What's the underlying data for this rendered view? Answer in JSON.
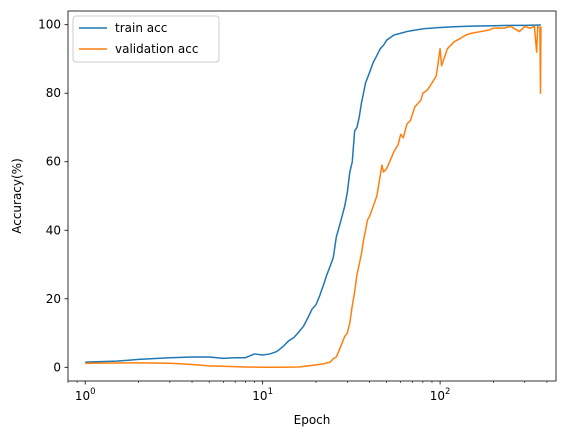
{
  "chart_data": {
    "type": "line",
    "xscale": "log",
    "xlabel": "Epoch",
    "ylabel": "Accuracy(%)",
    "xlim": [
      0.8,
      450
    ],
    "ylim": [
      -4,
      104
    ],
    "x_ticks": [
      {
        "value": 1,
        "base": "10",
        "exp": "0"
      },
      {
        "value": 10,
        "base": "10",
        "exp": "1"
      },
      {
        "value": 100,
        "base": "10",
        "exp": "2"
      }
    ],
    "y_ticks": [
      0,
      20,
      40,
      60,
      80,
      100
    ],
    "grid": false,
    "legend_position": "top-left",
    "series": [
      {
        "name": "train acc",
        "color": "#1f77b4",
        "points": [
          [
            1,
            1.5
          ],
          [
            1.5,
            1.8
          ],
          [
            2,
            2.3
          ],
          [
            3,
            2.8
          ],
          [
            4,
            3.0
          ],
          [
            5,
            3.0
          ],
          [
            6,
            2.6
          ],
          [
            7,
            2.8
          ],
          [
            8,
            2.8
          ],
          [
            9,
            3.9
          ],
          [
            10,
            3.6
          ],
          [
            11,
            3.9
          ],
          [
            12,
            4.6
          ],
          [
            13,
            6.0
          ],
          [
            14,
            7.7
          ],
          [
            15,
            8.7
          ],
          [
            16,
            10.3
          ],
          [
            17,
            12.0
          ],
          [
            18,
            14.5
          ],
          [
            19,
            17.0
          ],
          [
            20,
            18.3
          ],
          [
            21,
            21.0
          ],
          [
            22,
            24.0
          ],
          [
            23,
            27.0
          ],
          [
            24,
            29.5
          ],
          [
            25,
            32.0
          ],
          [
            26,
            38.0
          ],
          [
            27,
            41.0
          ],
          [
            28,
            44.0
          ],
          [
            29,
            47.0
          ],
          [
            30,
            51.0
          ],
          [
            31,
            57.0
          ],
          [
            32,
            60.0
          ],
          [
            33,
            69.0
          ],
          [
            34,
            70.0
          ],
          [
            35,
            73.0
          ],
          [
            36,
            77.0
          ],
          [
            37,
            80.0
          ],
          [
            38,
            83.0
          ],
          [
            40,
            86.0
          ],
          [
            42,
            89.0
          ],
          [
            44,
            91.0
          ],
          [
            46,
            93.0
          ],
          [
            48,
            94.0
          ],
          [
            50,
            95.5
          ],
          [
            55,
            97.0
          ],
          [
            60,
            97.5
          ],
          [
            65,
            98.0
          ],
          [
            70,
            98.3
          ],
          [
            80,
            98.8
          ],
          [
            90,
            99.0
          ],
          [
            100,
            99.2
          ],
          [
            120,
            99.4
          ],
          [
            150,
            99.6
          ],
          [
            200,
            99.7
          ],
          [
            250,
            99.8
          ],
          [
            300,
            99.8
          ],
          [
            370,
            99.9
          ]
        ]
      },
      {
        "name": "validation acc",
        "color": "#ff7f0e",
        "points": [
          [
            1,
            1.2
          ],
          [
            2,
            1.3
          ],
          [
            3,
            1.2
          ],
          [
            4,
            0.8
          ],
          [
            5,
            0.4
          ],
          [
            7,
            0.2
          ],
          [
            8,
            0.1
          ],
          [
            10,
            0.0
          ],
          [
            12,
            0.0
          ],
          [
            16,
            0.1
          ],
          [
            20,
            0.7
          ],
          [
            22,
            1.0
          ],
          [
            24,
            1.5
          ],
          [
            25,
            2.5
          ],
          [
            26,
            3.0
          ],
          [
            27,
            5.0
          ],
          [
            28,
            7.0
          ],
          [
            29,
            9.0
          ],
          [
            30,
            10.0
          ],
          [
            31,
            13.0
          ],
          [
            32,
            18.0
          ],
          [
            33,
            22.0
          ],
          [
            34,
            27.0
          ],
          [
            35,
            30.0
          ],
          [
            36,
            33.0
          ],
          [
            37,
            37.0
          ],
          [
            38,
            40.0
          ],
          [
            39,
            43.0
          ],
          [
            40,
            44.0
          ],
          [
            42,
            47.0
          ],
          [
            44,
            50.0
          ],
          [
            45,
            53.0
          ],
          [
            46,
            56.0
          ],
          [
            47,
            59.0
          ],
          [
            48,
            57.0
          ],
          [
            50,
            58.0
          ],
          [
            52,
            60.0
          ],
          [
            55,
            63.0
          ],
          [
            58,
            65.0
          ],
          [
            60,
            68.0
          ],
          [
            62,
            67.0
          ],
          [
            65,
            71.0
          ],
          [
            68,
            72.0
          ],
          [
            70,
            74.0
          ],
          [
            72,
            76.0
          ],
          [
            75,
            77.0
          ],
          [
            78,
            78.0
          ],
          [
            80,
            80.0
          ],
          [
            85,
            81.0
          ],
          [
            90,
            83.0
          ],
          [
            95,
            85.0
          ],
          [
            97,
            88.0
          ],
          [
            100,
            93.0
          ],
          [
            102,
            88.0
          ],
          [
            105,
            90.0
          ],
          [
            110,
            93.0
          ],
          [
            120,
            95.0
          ],
          [
            130,
            96.0
          ],
          [
            140,
            97.0
          ],
          [
            150,
            97.5
          ],
          [
            170,
            98.0
          ],
          [
            190,
            98.5
          ],
          [
            200,
            99.0
          ],
          [
            230,
            99.0
          ],
          [
            250,
            99.5
          ],
          [
            280,
            98.0
          ],
          [
            300,
            99.5
          ],
          [
            320,
            99.0
          ],
          [
            340,
            99.5
          ],
          [
            350,
            92.0
          ],
          [
            355,
            99.5
          ],
          [
            365,
            99.0
          ],
          [
            368,
            80.0
          ],
          [
            370,
            99.5
          ]
        ]
      }
    ]
  }
}
